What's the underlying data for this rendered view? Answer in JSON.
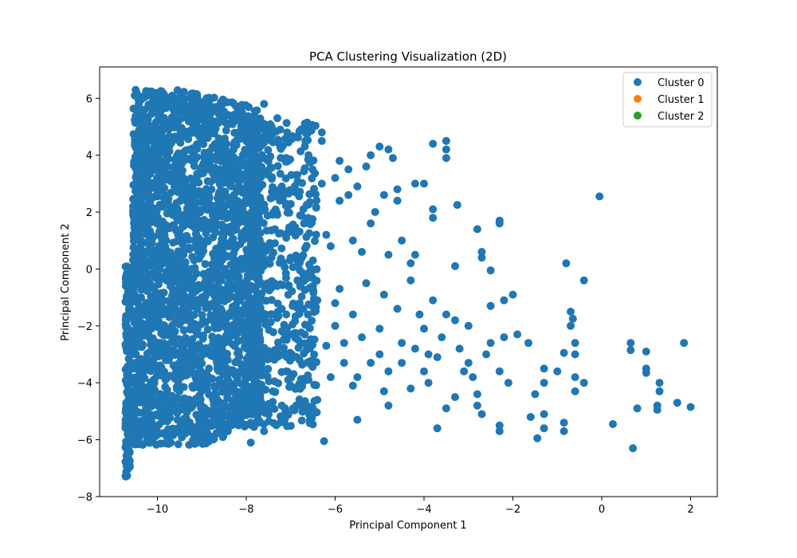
{
  "chart_data": {
    "type": "scatter",
    "title": "PCA Clustering Visualization (2D)",
    "xlabel": "Principal Component 1",
    "ylabel": "Principal Component 2",
    "xlim": [
      -11.3,
      2.6
    ],
    "ylim": [
      -8.0,
      7.1
    ],
    "x_ticks": [
      -10,
      -8,
      -6,
      -4,
      -2,
      0,
      2
    ],
    "y_ticks": [
      -8,
      -6,
      -4,
      -2,
      0,
      2,
      4,
      6
    ],
    "x_tick_labels": [
      "−10",
      "−8",
      "−6",
      "−4",
      "−2",
      "0",
      "2"
    ],
    "y_tick_labels": [
      "−8",
      "−6",
      "−4",
      "−2",
      "0",
      "2",
      "4",
      "6"
    ],
    "grid": false,
    "legend_position": "top-right",
    "series": [
      {
        "name": "Cluster 0",
        "color": "#1f77b4",
        "dense_regions": [
          {
            "x_range": [
              -10.6,
              -7.6
            ],
            "y_range": [
              -6.6,
              6.4
            ],
            "density": "very high"
          },
          {
            "x_range": [
              -10.75,
              -10.65
            ],
            "y_range": [
              -7.3,
              0.0
            ],
            "density": "vertical strip"
          }
        ],
        "points": [
          [
            -0.05,
            2.55
          ],
          [
            -0.4,
            -0.4
          ],
          [
            -0.8,
            0.2
          ],
          [
            -2.3,
            1.7
          ],
          [
            -2.3,
            1.6
          ],
          [
            -2.8,
            1.4
          ],
          [
            -2.7,
            0.6
          ],
          [
            -2.7,
            0.4
          ],
          [
            -3.25,
            2.25
          ],
          [
            -3.3,
            0.1
          ],
          [
            -2.5,
            -0.05
          ],
          [
            -2.0,
            -0.9
          ],
          [
            -2.2,
            -1.1
          ],
          [
            -2.5,
            -1.3
          ],
          [
            -3.5,
            4.5
          ],
          [
            -3.5,
            4.2
          ],
          [
            -3.5,
            3.9
          ],
          [
            -3.8,
            4.4
          ],
          [
            -4.0,
            3.0
          ],
          [
            -4.2,
            3.0
          ],
          [
            -3.8,
            2.1
          ],
          [
            -3.8,
            1.8
          ],
          [
            -4.2,
            0.5
          ],
          [
            -4.3,
            0.2
          ],
          [
            -4.5,
            1.0
          ],
          [
            -4.8,
            4.2
          ],
          [
            -4.9,
            2.6
          ],
          [
            -5.2,
            1.6
          ],
          [
            -5.5,
            2.9
          ],
          [
            -4.8,
            0.5
          ],
          [
            -6.25,
            -6.05
          ],
          [
            0.7,
            -6.3
          ],
          [
            0.25,
            -5.45
          ],
          [
            0.65,
            -2.6
          ],
          [
            0.65,
            -2.85
          ],
          [
            1.0,
            -2.9
          ],
          [
            1.0,
            -3.5
          ],
          [
            1.0,
            -3.65
          ],
          [
            1.3,
            -4.0
          ],
          [
            1.3,
            -4.3
          ],
          [
            1.25,
            -4.8
          ],
          [
            1.25,
            -4.95
          ],
          [
            1.7,
            -4.7
          ],
          [
            2.0,
            -4.85
          ],
          [
            1.85,
            -2.6
          ],
          [
            0.8,
            -4.9
          ],
          [
            -0.4,
            -4.0
          ],
          [
            -0.6,
            -3.0
          ],
          [
            -0.6,
            -2.6
          ],
          [
            -0.65,
            -1.75
          ],
          [
            -0.7,
            -1.5
          ],
          [
            -0.7,
            -2.0
          ],
          [
            -0.85,
            -2.95
          ],
          [
            -0.85,
            -5.4
          ],
          [
            -0.85,
            -5.7
          ],
          [
            -0.6,
            -4.3
          ],
          [
            -0.6,
            -3.8
          ],
          [
            -1.0,
            -3.6
          ],
          [
            -1.3,
            -3.5
          ],
          [
            -1.3,
            -4.0
          ],
          [
            -1.5,
            -4.4
          ],
          [
            -1.6,
            -5.2
          ],
          [
            -1.3,
            -5.1
          ],
          [
            -1.3,
            -5.6
          ],
          [
            -1.45,
            -5.95
          ],
          [
            -1.65,
            -2.6
          ],
          [
            -1.9,
            -2.3
          ],
          [
            -2.2,
            -2.4
          ],
          [
            -2.5,
            -2.6
          ],
          [
            -2.6,
            -3.0
          ],
          [
            -2.3,
            -3.6
          ],
          [
            -2.1,
            -4.0
          ],
          [
            -2.3,
            -5.5
          ],
          [
            -2.3,
            -5.7
          ],
          [
            -2.7,
            -5.1
          ],
          [
            -2.8,
            -4.4
          ],
          [
            -2.8,
            -4.8
          ],
          [
            -3.0,
            -3.3
          ],
          [
            -3.3,
            -4.5
          ],
          [
            -3.5,
            -4.9
          ],
          [
            -3.7,
            -5.6
          ],
          [
            -3.9,
            -3.0
          ],
          [
            -3.9,
            -4.0
          ],
          [
            -4.3,
            -4.2
          ],
          [
            -4.5,
            -3.3
          ],
          [
            -4.8,
            -4.8
          ],
          [
            -5.0,
            -2.1
          ],
          [
            -5.2,
            -3.3
          ],
          [
            -5.5,
            -3.8
          ],
          [
            -5.5,
            -5.3
          ],
          [
            -6.1,
            -3.8
          ],
          [
            -6.5,
            -4.9
          ],
          [
            -5.8,
            -2.6
          ],
          [
            -6.0,
            -1.2
          ],
          [
            -6.4,
            -1.1
          ],
          [
            -5.9,
            -0.7
          ],
          [
            -5.3,
            -0.5
          ],
          [
            -4.9,
            -0.9
          ],
          [
            -4.6,
            -1.4
          ],
          [
            -4.1,
            -1.6
          ],
          [
            -3.5,
            -1.6
          ],
          [
            -3.3,
            -1.8
          ],
          [
            -3.0,
            -2.0
          ],
          [
            -3.1,
            -3.6
          ],
          [
            -2.9,
            -3.8
          ],
          [
            -3.8,
            -1.1
          ],
          [
            -4.3,
            -0.4
          ],
          [
            -4.5,
            -2.6
          ],
          [
            -5.6,
            -4.1
          ],
          [
            -4.9,
            -4.3
          ],
          [
            -6.8,
            -1.2
          ],
          [
            -7.0,
            -2.3
          ],
          [
            -6.7,
            1.6
          ],
          [
            -6.2,
            1.2
          ],
          [
            -6.1,
            0.8
          ],
          [
            -5.9,
            2.4
          ],
          [
            -5.7,
            2.6
          ],
          [
            -6.0,
            3.2
          ],
          [
            -6.3,
            3.0
          ],
          [
            -6.3,
            4.8
          ],
          [
            -6.3,
            4.5
          ],
          [
            -5.9,
            3.8
          ],
          [
            -5.7,
            3.5
          ],
          [
            -5.3,
            3.6
          ],
          [
            -5.2,
            4.0
          ],
          [
            -5.0,
            4.3
          ],
          [
            -4.7,
            3.9
          ],
          [
            -4.6,
            2.8
          ],
          [
            -4.6,
            2.4
          ],
          [
            -5.1,
            2.0
          ],
          [
            -5.4,
            0.6
          ],
          [
            -5.6,
            1.0
          ],
          [
            -6.5,
            0.3
          ],
          [
            -6.7,
            -0.3
          ],
          [
            -6.5,
            -0.6
          ],
          [
            -5.6,
            -1.6
          ],
          [
            -5.4,
            -2.4
          ],
          [
            -5.0,
            -3.0
          ],
          [
            -4.8,
            -3.6
          ],
          [
            -4.2,
            -2.8
          ],
          [
            -4.0,
            -3.6
          ],
          [
            -3.7,
            -3.1
          ],
          [
            -3.2,
            -2.8
          ],
          [
            -3.6,
            -2.4
          ],
          [
            -4.0,
            -2.1
          ],
          [
            -6.9,
            2.7
          ],
          [
            -6.6,
            4.0
          ],
          [
            -7.0,
            4.6
          ],
          [
            -7.1,
            3.9
          ],
          [
            -7.2,
            2.9
          ],
          [
            -7.3,
            1.9
          ],
          [
            -7.1,
            1.1
          ],
          [
            -7.0,
            0.4
          ],
          [
            -7.3,
            -0.6
          ],
          [
            -7.1,
            -1.6
          ],
          [
            -7.3,
            -2.8
          ],
          [
            -7.1,
            -3.6
          ],
          [
            -7.4,
            -4.3
          ],
          [
            -7.2,
            -4.8
          ],
          [
            -7.5,
            -5.0
          ],
          [
            -7.6,
            -5.7
          ],
          [
            -7.9,
            -6.1
          ],
          [
            -7.6,
            5.1
          ],
          [
            -7.6,
            5.8
          ],
          [
            -7.3,
            5.3
          ],
          [
            -7.5,
            3.3
          ],
          [
            -7.6,
            0.8
          ],
          [
            -7.5,
            -1.9
          ],
          [
            -7.0,
            -4.1
          ],
          [
            -6.8,
            -3.2
          ],
          [
            -6.6,
            -3.9
          ],
          [
            -6.4,
            -4.6
          ],
          [
            -6.2,
            -2.7
          ],
          [
            -6.0,
            -2.0
          ],
          [
            -5.8,
            -3.3
          ]
        ]
      },
      {
        "name": "Cluster 1",
        "color": "#ff7f0e",
        "points": []
      },
      {
        "name": "Cluster 2",
        "color": "#2ca02c",
        "points": []
      }
    ]
  }
}
